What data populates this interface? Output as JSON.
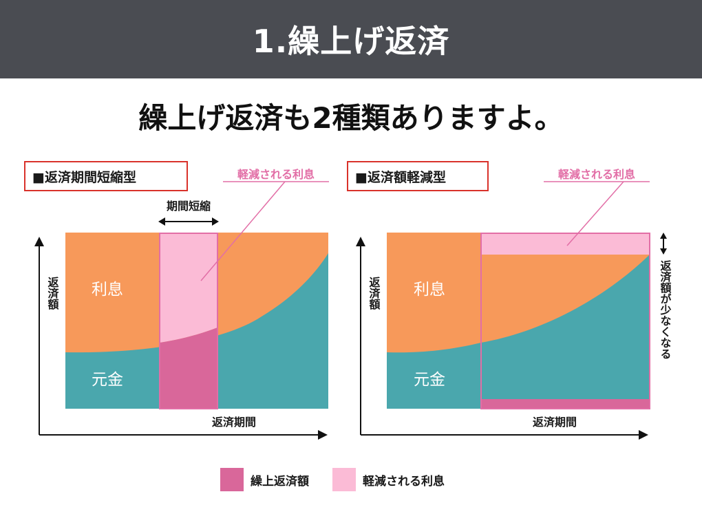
{
  "header": {
    "title": "1.繰上げ返済"
  },
  "subtitle": "繰上げ返済も2種類ありますよ。",
  "colors": {
    "interest": "#f7995a",
    "principal": "#4aa7ad",
    "prepayment": "#d9679a",
    "reduced_interest": "#fbbbd6",
    "pink_line": "#e26ea6",
    "title_border": "#d9312a"
  },
  "left": {
    "title": "■返済期間短縮型",
    "reduced_label": "軽減される利息",
    "shortening_label": "期間短縮",
    "y_label": "返済額",
    "x_label": "返済期間",
    "interest_label": "利息",
    "principal_label": "元金"
  },
  "right": {
    "title": "■返済額軽減型",
    "reduced_label": "軽減される利息",
    "y_label": "返済額",
    "x_label": "返済期間",
    "interest_label": "利息",
    "principal_label": "元金",
    "side_note": "返済額が少なくなる"
  },
  "legend": [
    {
      "label": "繰上返済額",
      "color": "#d9679a"
    },
    {
      "label": "軽減される利息",
      "color": "#fbbbd6"
    }
  ]
}
